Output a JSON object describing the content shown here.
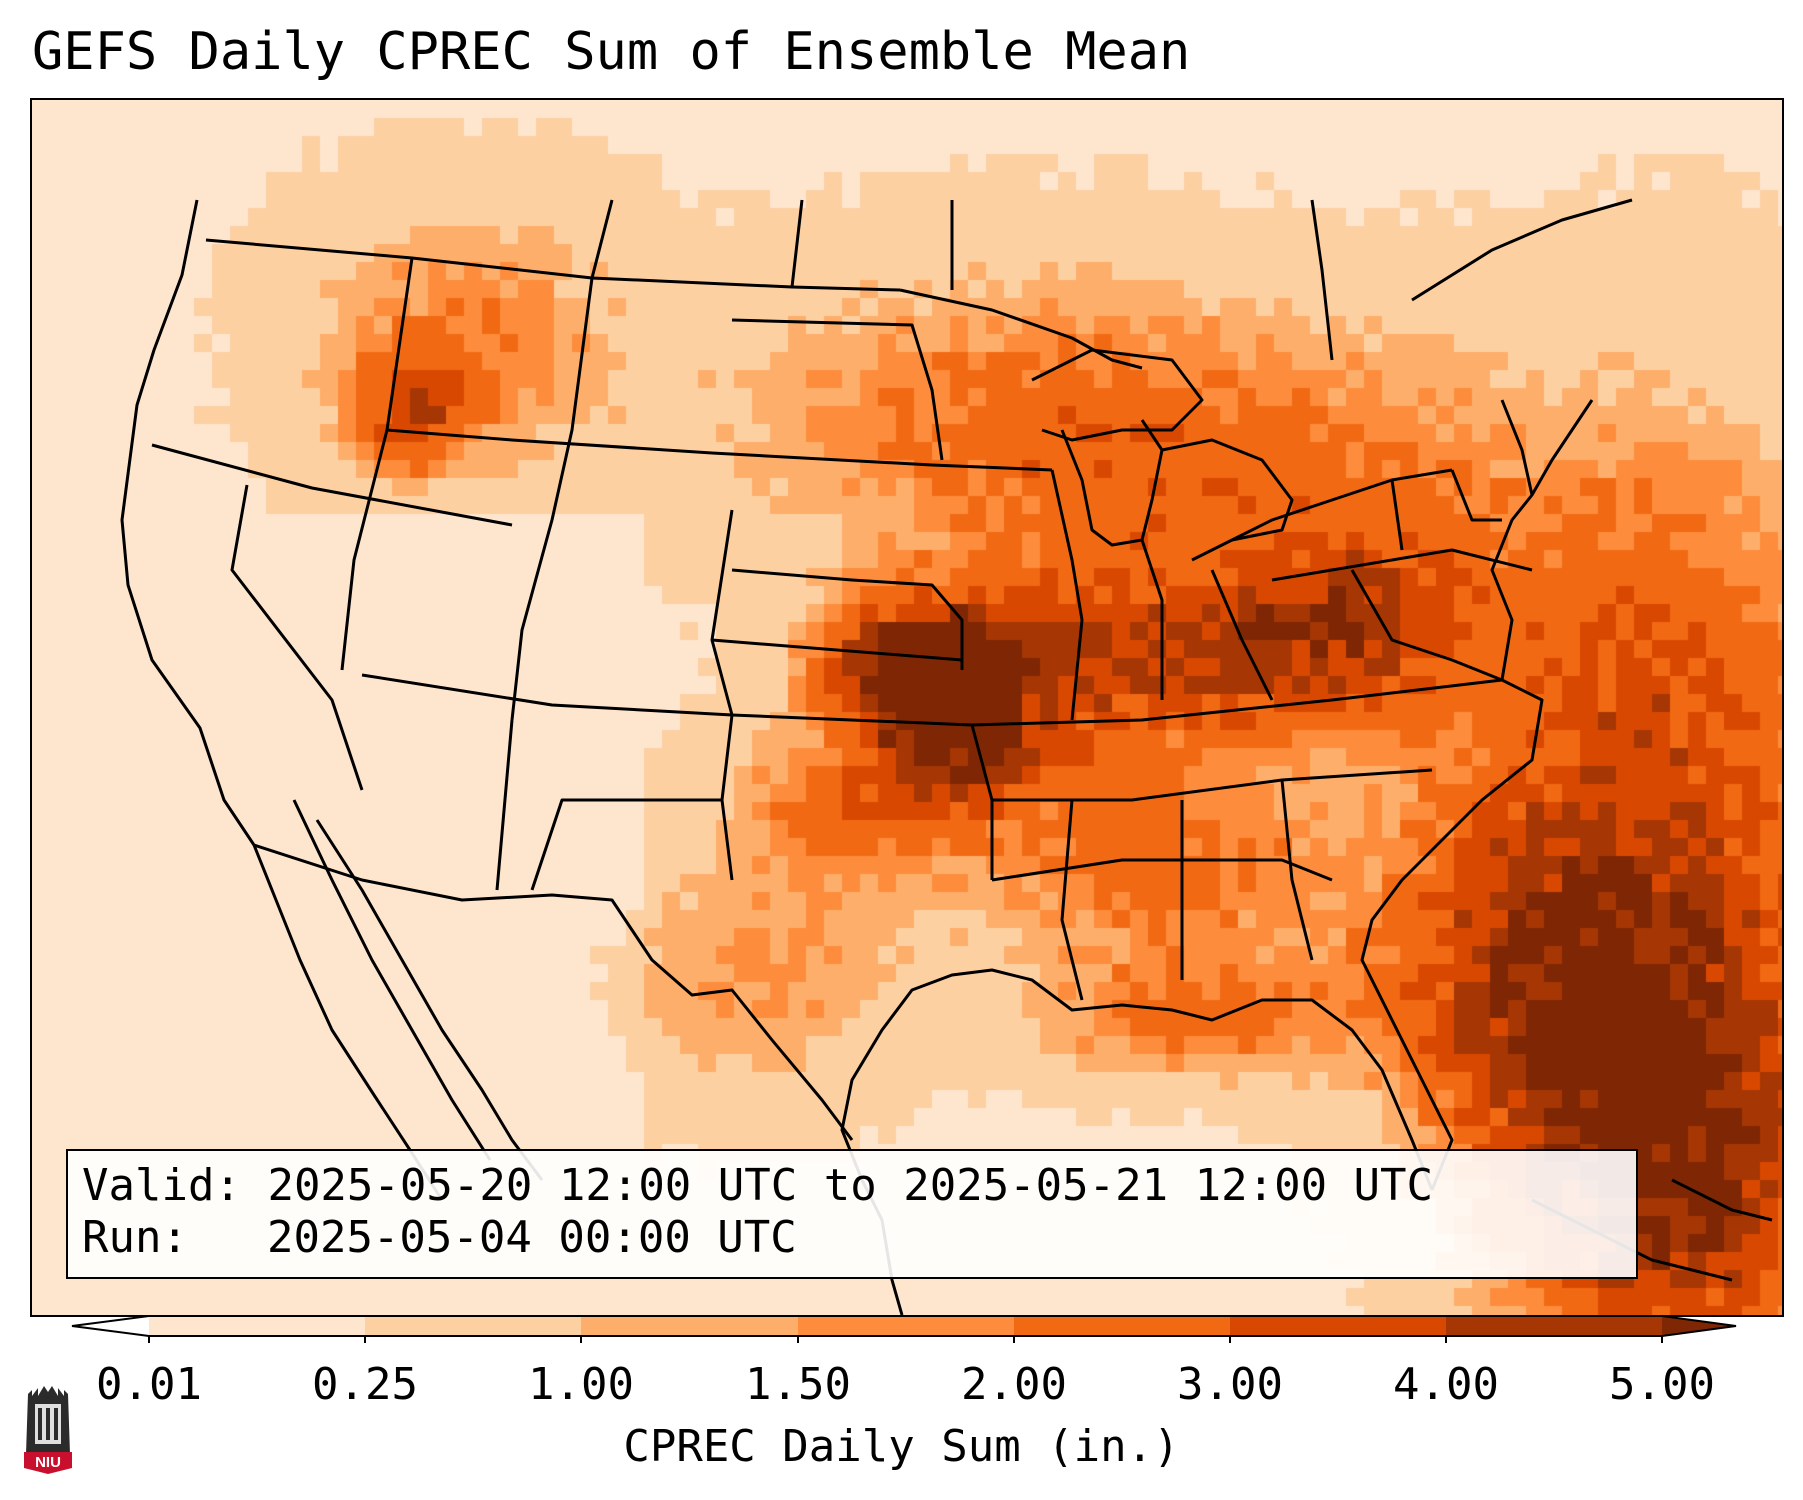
{
  "title": "GEFS Daily CPREC Sum of Ensemble Mean",
  "info": {
    "valid_label": "Valid:",
    "valid_value": "2025-05-20 12:00 UTC to 2025-05-21 12:00 UTC",
    "run_label": "Run:",
    "run_value": "2025-05-04 00:00 UTC"
  },
  "colorbar": {
    "label": "CPREC Daily Sum (in.)",
    "ticks": [
      "0.01",
      "0.25",
      "1.00",
      "1.50",
      "2.00",
      "3.00",
      "4.00",
      "5.00"
    ],
    "colors": [
      "#fff5eb",
      "#fee6ce",
      "#fdd0a2",
      "#fdae6b",
      "#fd8d3c",
      "#f16913",
      "#d94801",
      "#a63603",
      "#7f2704"
    ],
    "under_color": "#ffffff",
    "over_color": "#7f2704",
    "extend": "both"
  },
  "logo": {
    "text": "NIU",
    "colors": {
      "tower": "#2b2b2b",
      "badge": "#c8102e"
    }
  }
}
